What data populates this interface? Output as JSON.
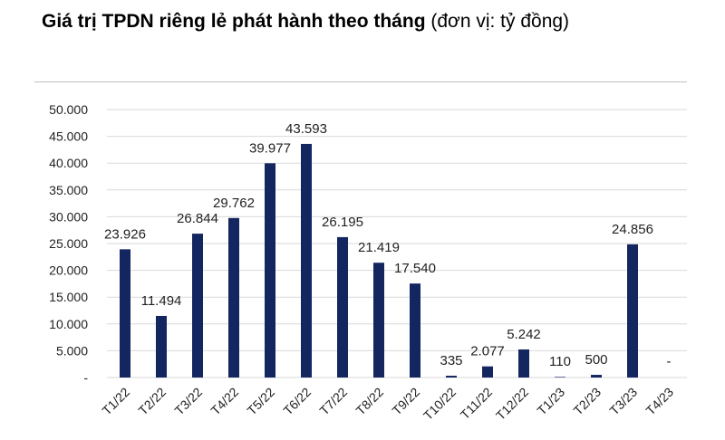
{
  "title": "Giá trị TPDN riêng lẻ phát hành theo tháng",
  "subtitle": "(đơn vị: tỷ đồng)",
  "colors": {
    "bar": "#132660",
    "grid": "#d9d9d9",
    "text": "#222222"
  },
  "chart_data": {
    "type": "bar",
    "categories": [
      "T1/22",
      "T2/22",
      "T3/22",
      "T4/22",
      "T5/22",
      "T6/22",
      "T7/22",
      "T8/22",
      "T9/22",
      "T10/22",
      "T11/22",
      "T12/22",
      "T1/23",
      "T2/23",
      "T3/23",
      "T4/23"
    ],
    "values": [
      23926,
      11494,
      26844,
      29762,
      39977,
      43593,
      26195,
      21419,
      17540,
      335,
      2077,
      5242,
      110,
      500,
      24856,
      0
    ],
    "data_labels": [
      "23.926",
      "11.494",
      "26.844",
      "29.762",
      "39.977",
      "43.593",
      "26.195",
      "21.419",
      "17.540",
      "335",
      "2.077",
      "5.242",
      "110",
      "500",
      "24.856",
      "-"
    ],
    "y_ticks": [
      0,
      5000,
      10000,
      15000,
      20000,
      25000,
      30000,
      35000,
      40000,
      45000,
      50000
    ],
    "y_tick_labels": [
      "-",
      "5.000",
      "10.000",
      "15.000",
      "20.000",
      "25.000",
      "30.000",
      "35.000",
      "40.000",
      "45.000",
      "50.000"
    ],
    "ylim": [
      0,
      50000
    ],
    "grid": true,
    "legend": "none"
  }
}
